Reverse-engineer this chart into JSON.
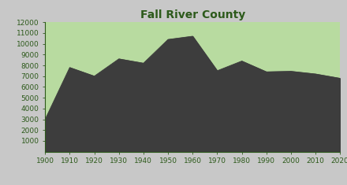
{
  "title": "Fall River County",
  "years": [
    1900,
    1910,
    1920,
    1930,
    1940,
    1950,
    1960,
    1970,
    1980,
    1990,
    2000,
    2010,
    2020
  ],
  "population": [
    3000,
    7800,
    7000,
    8600,
    8200,
    10400,
    10700,
    7500,
    8400,
    7400,
    7450,
    7200,
    6800
  ],
  "bg_color": "#b8dba0",
  "fill_color": "#3d3d3d",
  "line_color": "#3d3d3d",
  "title_color": "#2d5a1b",
  "tick_color": "#2d5a1b",
  "ylim": [
    0,
    12000
  ],
  "yticks": [
    1000,
    2000,
    3000,
    4000,
    5000,
    6000,
    7000,
    8000,
    9000,
    10000,
    11000,
    12000
  ],
  "xlim": [
    1900,
    2020
  ],
  "xticks": [
    1900,
    1910,
    1920,
    1930,
    1940,
    1950,
    1960,
    1970,
    1980,
    1990,
    2000,
    2010,
    2020
  ],
  "fig_bg_color": "#c8c8c8",
  "outer_bg_color": "#c8c8c8"
}
